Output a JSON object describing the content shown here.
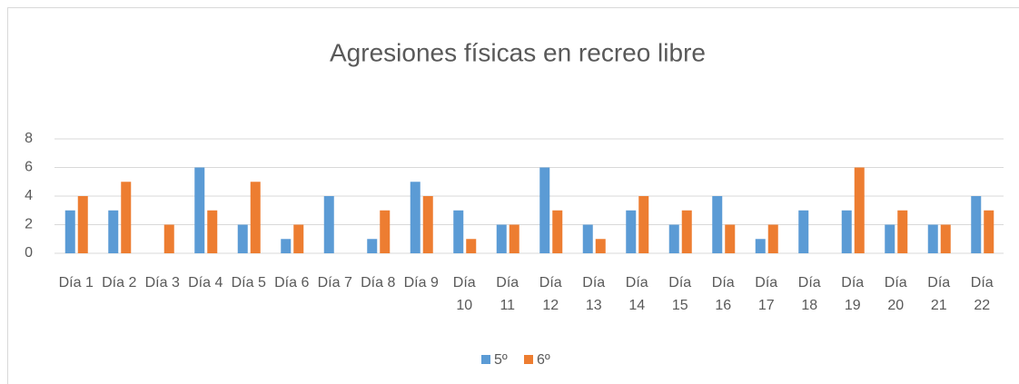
{
  "chart_data": {
    "type": "bar",
    "title": "Agresiones físicas en recreo libre",
    "categories": [
      "Día 1",
      "Día 2",
      "Día 3",
      "Día 4",
      "Día 5",
      "Día 6",
      "Día 7",
      "Día 8",
      "Día 9",
      "Día 10",
      "Día 11",
      "Día 12",
      "Día 13",
      "Día 14",
      "Día 15",
      "Día 16",
      "Día 17",
      "Día 18",
      "Día 19",
      "Día 20",
      "Día 21",
      "Día 22"
    ],
    "series": [
      {
        "name": "5º",
        "color": "#5b9bd5",
        "values": [
          3,
          3,
          0,
          6,
          2,
          1,
          4,
          1,
          5,
          3,
          2,
          6,
          2,
          3,
          2,
          4,
          1,
          3,
          3,
          2,
          2,
          4
        ]
      },
      {
        "name": "6º",
        "color": "#ed7d31",
        "values": [
          4,
          5,
          2,
          3,
          5,
          2,
          0,
          3,
          4,
          1,
          2,
          3,
          1,
          4,
          3,
          2,
          2,
          0,
          6,
          3,
          2,
          3
        ]
      }
    ],
    "ylim": [
      0,
      8
    ],
    "yticks": [
      0,
      2,
      4,
      6,
      8
    ],
    "grid": true,
    "legend": "bottom"
  }
}
